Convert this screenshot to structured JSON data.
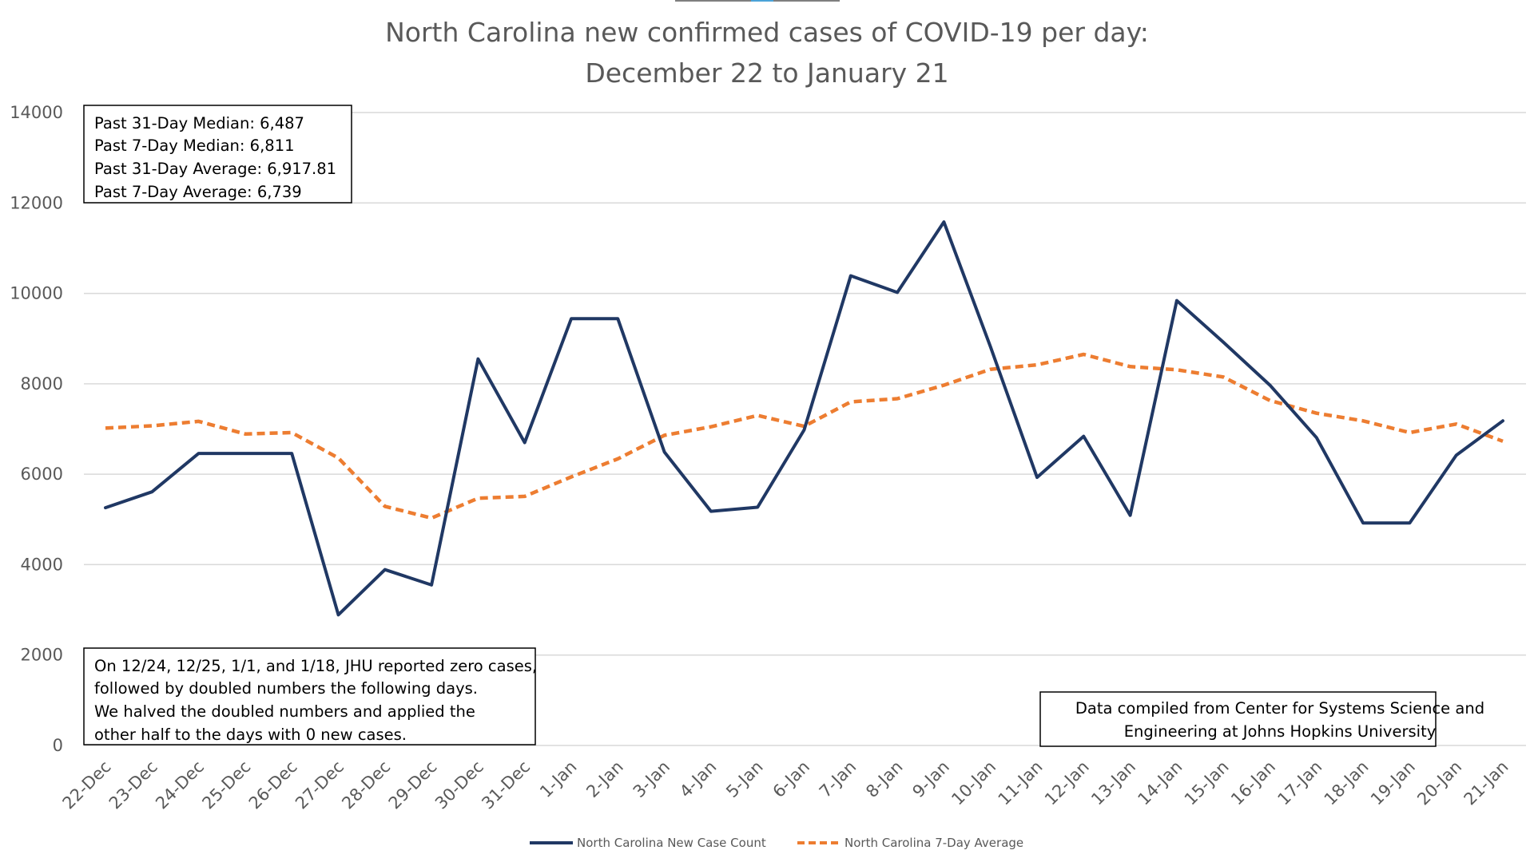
{
  "chart_data": {
    "type": "line",
    "title_lines": [
      "North Carolina new confirmed cases of COVID-19 per day:",
      "December 22 to January 21"
    ],
    "categories": [
      "22-Dec",
      "23-Dec",
      "24-Dec",
      "25-Dec",
      "26-Dec",
      "27-Dec",
      "28-Dec",
      "29-Dec",
      "30-Dec",
      "31-Dec",
      "1-Jan",
      "2-Jan",
      "3-Jan",
      "4-Jan",
      "5-Jan",
      "6-Jan",
      "7-Jan",
      "8-Jan",
      "9-Jan",
      "10-Jan",
      "11-Jan",
      "12-Jan",
      "13-Jan",
      "14-Jan",
      "15-Jan",
      "16-Jan",
      "17-Jan",
      "18-Jan",
      "19-Jan",
      "20-Jan",
      "21-Jan"
    ],
    "ylim": [
      0,
      14000
    ],
    "yticks": [
      "0",
      "2000",
      "4000",
      "6000",
      "8000",
      "10000",
      "12000",
      "14000"
    ],
    "grid": true,
    "legend_position": "bottom",
    "series": [
      {
        "name": "North Carolina New Case Count",
        "color": "#203864",
        "style": "solid",
        "values": [
          5260,
          5610,
          6460,
          6460,
          6460,
          2890,
          3890,
          3550,
          8550,
          6700,
          9440,
          9440,
          6490,
          5180,
          5270,
          6980,
          10390,
          10020,
          11580,
          8820,
          5930,
          6840,
          5090,
          9840,
          8920,
          7970,
          6810,
          4920,
          4920,
          6420,
          7180
        ]
      },
      {
        "name": "North Carolina 7-Day Average",
        "color": "#ED7D31",
        "style": "dashed",
        "values": [
          7020,
          7070,
          7170,
          6890,
          6920,
          6360,
          5290,
          5030,
          5470,
          5510,
          5940,
          6340,
          6860,
          7050,
          7300,
          7060,
          7600,
          7670,
          7970,
          8320,
          8420,
          8650,
          8380,
          8310,
          8150,
          7630,
          7350,
          7180,
          6920,
          7110,
          6730
        ]
      }
    ],
    "annotations": {
      "stats_box": [
        "Past 31-Day Median: 6,487",
        "Past 7-Day Median: 6,811",
        "Past 31-Day Average: 6,917.81",
        "Past 7-Day Average: 6,739"
      ],
      "note_box": [
        "On 12/24, 12/25, 1/1, and 1/18, JHU reported zero cases,",
        "followed by doubled numbers the following days.",
        "We halved the doubled numbers and applied the",
        "other half to the days with 0 new cases."
      ],
      "source_box": [
        "Data compiled from Center for Systems Science and",
        "Engineering at Johns Hopkins University"
      ]
    }
  }
}
